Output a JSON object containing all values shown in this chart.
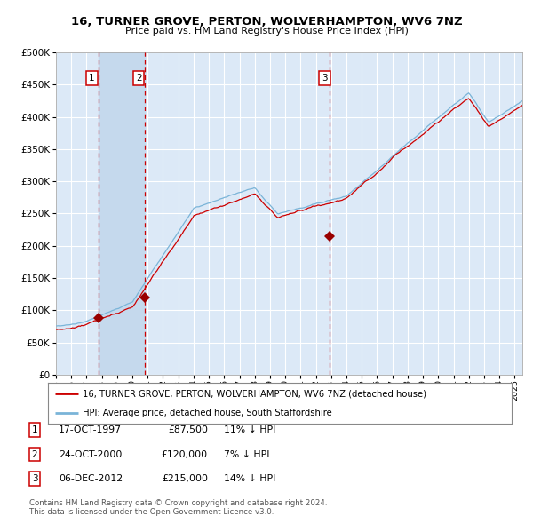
{
  "title": "16, TURNER GROVE, PERTON, WOLVERHAMPTON, WV6 7NZ",
  "subtitle": "Price paid vs. HM Land Registry's House Price Index (HPI)",
  "background_color": "#ffffff",
  "plot_bg_color": "#dce9f7",
  "grid_color": "#ffffff",
  "hpi_line_color": "#7ab4d8",
  "price_line_color": "#cc0000",
  "sale_marker_color": "#990000",
  "vline_color": "#cc0000",
  "span_color": "#c5d9ed",
  "xlim_start": 1995.0,
  "xlim_end": 2025.5,
  "ylim": [
    0,
    500000
  ],
  "yticks": [
    0,
    50000,
    100000,
    150000,
    200000,
    250000,
    300000,
    350000,
    400000,
    450000,
    500000
  ],
  "sale1_x": 1997.79,
  "sale1_y": 87500,
  "sale1_label": "1",
  "sale1_date": "17-OCT-1997",
  "sale1_price": "£87,500",
  "sale1_hpi": "11% ↓ HPI",
  "sale2_x": 2000.81,
  "sale2_y": 120000,
  "sale2_label": "2",
  "sale2_date": "24-OCT-2000",
  "sale2_price": "£120,000",
  "sale2_hpi": "7% ↓ HPI",
  "sale3_x": 2012.92,
  "sale3_y": 215000,
  "sale3_label": "3",
  "sale3_date": "06-DEC-2012",
  "sale3_price": "£215,000",
  "sale3_hpi": "14% ↓ HPI",
  "legend_label1": "16, TURNER GROVE, PERTON, WOLVERHAMPTON, WV6 7NZ (detached house)",
  "legend_label2": "HPI: Average price, detached house, South Staffordshire",
  "footnote1": "Contains HM Land Registry data © Crown copyright and database right 2024.",
  "footnote2": "This data is licensed under the Open Government Licence v3.0."
}
